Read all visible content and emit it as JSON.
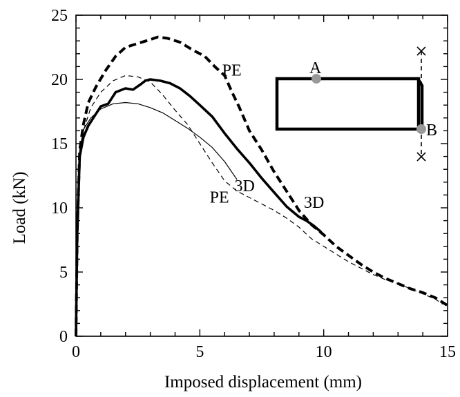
{
  "chart_data": {
    "type": "line",
    "title": "",
    "xlabel": "Imposed displacement (mm)",
    "ylabel": "Load (kN)",
    "xlim": [
      0,
      15
    ],
    "ylim": [
      0,
      25
    ],
    "x_ticks": [
      0,
      5,
      10,
      15
    ],
    "y_ticks": [
      0,
      5,
      10,
      15,
      20,
      25
    ],
    "grid": false,
    "legend": "none",
    "series": [
      {
        "style": "thick-dashed",
        "x": [
          0,
          0.05,
          0.15,
          0.3,
          0.5,
          0.8,
          1.2,
          1.6,
          2.0,
          2.5,
          3.0,
          3.3,
          3.7,
          4.2,
          4.7,
          5.2,
          5.6,
          6.0,
          6.3,
          6.6,
          7.0,
          7.5,
          8.0,
          8.5,
          9.0,
          9.5,
          10.0,
          10.5,
          11.0,
          11.5,
          12.0,
          12.5,
          13.0,
          13.5,
          14.0,
          14.5,
          15.0
        ],
        "y": [
          0,
          8,
          14.5,
          16.5,
          18.2,
          19.4,
          20.7,
          21.8,
          22.5,
          22.8,
          23.1,
          23.3,
          23.2,
          22.9,
          22.3,
          21.8,
          21.0,
          20.3,
          19.0,
          17.8,
          16.0,
          14.5,
          12.8,
          11.3,
          9.8,
          8.7,
          7.9,
          7.0,
          6.3,
          5.6,
          5.0,
          4.5,
          4.1,
          3.7,
          3.4,
          3.0,
          2.4
        ]
      },
      {
        "style": "thick-solid",
        "x": [
          0,
          0.05,
          0.15,
          0.3,
          0.5,
          0.7,
          1.0,
          1.3,
          1.6,
          2.0,
          2.3,
          2.6,
          2.8,
          3.0,
          3.4,
          3.8,
          4.2,
          4.6,
          5.0,
          5.5,
          6.0,
          6.5,
          7.0,
          7.5,
          8.0,
          8.5,
          9.0,
          9.3,
          9.6,
          9.9
        ],
        "y": [
          0,
          8,
          14,
          15.5,
          16.4,
          17.0,
          17.9,
          18.1,
          19.0,
          19.3,
          19.2,
          19.6,
          19.9,
          20.0,
          19.9,
          19.7,
          19.3,
          18.7,
          18.0,
          17.1,
          15.8,
          14.6,
          13.5,
          12.3,
          11.2,
          10.1,
          9.3,
          9.0,
          8.6,
          8.1
        ]
      },
      {
        "style": "thin-dashed",
        "x": [
          0,
          0.05,
          0.15,
          0.3,
          0.6,
          1.0,
          1.5,
          2.0,
          2.5,
          3.0,
          3.5,
          4.0,
          4.5,
          5.0,
          5.5,
          6.0,
          6.5,
          7.0,
          7.5,
          8.0,
          8.5,
          9.0,
          9.5,
          10.0,
          10.5,
          11.0,
          11.5,
          12.0,
          12.5,
          13.0,
          13.5,
          14.0,
          14.5,
          14.8
        ],
        "y": [
          0,
          8,
          14,
          16.0,
          17.8,
          19.0,
          19.9,
          20.3,
          20.2,
          19.8,
          18.8,
          17.6,
          16.5,
          15.0,
          13.5,
          12.1,
          11.3,
          10.8,
          10.3,
          9.8,
          9.2,
          8.5,
          7.6,
          7.0,
          6.4,
          5.8,
          5.3,
          4.8,
          4.4,
          4.1,
          3.7,
          3.3,
          2.9,
          2.5
        ]
      },
      {
        "style": "thin-solid",
        "x": [
          0,
          0.05,
          0.15,
          0.3,
          0.6,
          1.0,
          1.5,
          2.0,
          2.5,
          3.0,
          3.5,
          4.0,
          4.5,
          5.0,
          5.5,
          6.0,
          6.5
        ],
        "y": [
          0,
          8,
          14.5,
          16.1,
          17.0,
          17.7,
          18.1,
          18.2,
          18.1,
          17.8,
          17.4,
          16.8,
          16.2,
          15.5,
          14.7,
          13.6,
          12.2
        ]
      }
    ],
    "annotations": [
      {
        "text": "PE",
        "x": 5.9,
        "y": 20.3
      },
      {
        "text": "3D",
        "x": 6.4,
        "y": 11.3
      },
      {
        "text": "PE",
        "x": 5.4,
        "y": 10.4
      },
      {
        "text": "3D",
        "x": 9.2,
        "y": 10.0
      }
    ],
    "inset": {
      "point_labels": [
        "A",
        "B"
      ]
    }
  }
}
